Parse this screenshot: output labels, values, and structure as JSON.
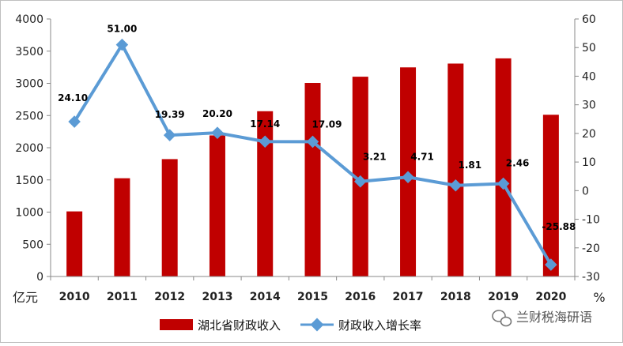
{
  "chart_data": {
    "type": "bar+line",
    "categories": [
      "2010",
      "2011",
      "2012",
      "2013",
      "2014",
      "2015",
      "2016",
      "2017",
      "2018",
      "2019",
      "2020"
    ],
    "series": [
      {
        "name": "湖北省财政收入",
        "type": "bar",
        "axis": "left",
        "color": "#c00000",
        "values": [
          1011,
          1526,
          1823,
          2191,
          2567,
          3006,
          3103,
          3248,
          3307,
          3388,
          2512
        ]
      },
      {
        "name": "财政收入增长率",
        "type": "line",
        "axis": "right",
        "color": "#5b9bd5",
        "values": [
          24.1,
          51.0,
          19.39,
          20.2,
          17.14,
          17.09,
          3.21,
          4.71,
          1.81,
          2.46,
          -25.88
        ],
        "labels": [
          "24.10",
          "51.00",
          "19.39",
          "20.20",
          "17.14",
          "17.09",
          "3.21",
          "4.71",
          "1.81",
          "2.46",
          "-25.88"
        ]
      }
    ],
    "y_left": {
      "unit": "亿元",
      "min": 0,
      "max": 4000,
      "step": 500,
      "ticks": [
        "0",
        "500",
        "1000",
        "1500",
        "2000",
        "2500",
        "3000",
        "3500",
        "4000"
      ]
    },
    "y_right": {
      "unit": "%",
      "min": -30,
      "max": 60,
      "step": 10,
      "ticks": [
        "-30",
        "-20",
        "-10",
        "0",
        "10",
        "20",
        "30",
        "40",
        "50",
        "60"
      ]
    },
    "legend_position": "bottom",
    "grid": false
  },
  "watermark": {
    "text": "兰财税海研语",
    "icon": "wechat-icon"
  }
}
